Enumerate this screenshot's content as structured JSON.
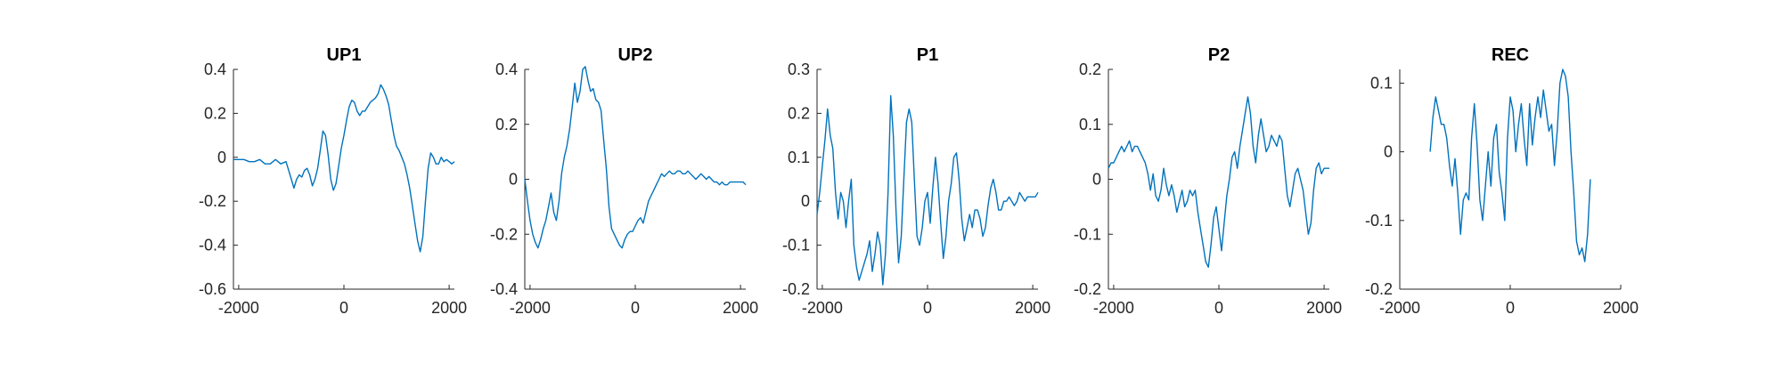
{
  "chart_data": [
    {
      "type": "line",
      "title": "UP1",
      "xlim": [
        -2100,
        2100
      ],
      "ylim": [
        -0.6,
        0.4
      ],
      "xticks": [
        -2000,
        0,
        2000
      ],
      "xtick_labels": [
        "-2000",
        "0",
        "2000"
      ],
      "yticks": [
        0.4,
        0.2,
        0,
        -0.2,
        -0.4,
        -0.6
      ],
      "ytick_labels": [
        "0.4",
        "0.2",
        "0",
        "-0.2",
        "-0.4",
        "-0.6"
      ],
      "series": [
        {
          "color": "#0072BD",
          "x": [
            -2100,
            -2000,
            -1900,
            -1800,
            -1700,
            -1600,
            -1500,
            -1400,
            -1300,
            -1200,
            -1100,
            -1050,
            -1000,
            -950,
            -900,
            -850,
            -800,
            -750,
            -700,
            -650,
            -600,
            -550,
            -500,
            -450,
            -400,
            -350,
            -300,
            -250,
            -200,
            -150,
            -100,
            -50,
            0,
            50,
            100,
            150,
            200,
            250,
            300,
            350,
            400,
            450,
            500,
            550,
            600,
            650,
            700,
            750,
            800,
            850,
            900,
            950,
            1000,
            1050,
            1100,
            1150,
            1200,
            1250,
            1300,
            1350,
            1400,
            1450,
            1500,
            1550,
            1600,
            1650,
            1700,
            1750,
            1800,
            1850,
            1900,
            1950,
            2000,
            2050,
            2100
          ],
          "y": [
            -0.01,
            -0.01,
            -0.01,
            -0.02,
            -0.02,
            -0.01,
            -0.03,
            -0.03,
            -0.01,
            -0.03,
            -0.02,
            -0.06,
            -0.1,
            -0.14,
            -0.1,
            -0.08,
            -0.09,
            -0.06,
            -0.05,
            -0.08,
            -0.13,
            -0.1,
            -0.05,
            0.03,
            0.12,
            0.1,
            0.01,
            -0.1,
            -0.15,
            -0.12,
            -0.04,
            0.04,
            0.1,
            0.17,
            0.23,
            0.26,
            0.25,
            0.21,
            0.19,
            0.21,
            0.21,
            0.23,
            0.25,
            0.26,
            0.27,
            0.29,
            0.33,
            0.31,
            0.28,
            0.24,
            0.17,
            0.1,
            0.05,
            0.03,
            0.0,
            -0.03,
            -0.08,
            -0.14,
            -0.22,
            -0.3,
            -0.38,
            -0.43,
            -0.36,
            -0.2,
            -0.05,
            0.02,
            0.0,
            -0.03,
            -0.03,
            0.0,
            -0.02,
            -0.01,
            -0.02,
            -0.03,
            -0.02
          ]
        }
      ]
    },
    {
      "type": "line",
      "title": "UP2",
      "xlim": [
        -2100,
        2100
      ],
      "ylim": [
        -0.4,
        0.4
      ],
      "xticks": [
        -2000,
        0,
        2000
      ],
      "xtick_labels": [
        "-2000",
        "0",
        "2000"
      ],
      "yticks": [
        0.4,
        0.2,
        0,
        -0.2,
        -0.4
      ],
      "ytick_labels": [
        "0.4",
        "0.2",
        "0",
        "-0.2",
        "-0.4"
      ],
      "series": [
        {
          "color": "#0072BD",
          "x": [
            -2100,
            -2050,
            -2000,
            -1950,
            -1900,
            -1850,
            -1800,
            -1750,
            -1700,
            -1650,
            -1600,
            -1550,
            -1500,
            -1450,
            -1400,
            -1350,
            -1300,
            -1250,
            -1200,
            -1150,
            -1100,
            -1050,
            -1000,
            -950,
            -900,
            -850,
            -800,
            -750,
            -700,
            -650,
            -600,
            -550,
            -500,
            -450,
            -400,
            -350,
            -300,
            -250,
            -200,
            -150,
            -100,
            -50,
            0,
            50,
            100,
            150,
            200,
            250,
            300,
            350,
            400,
            450,
            500,
            550,
            600,
            650,
            700,
            750,
            800,
            850,
            900,
            950,
            1000,
            1050,
            1100,
            1150,
            1200,
            1250,
            1300,
            1350,
            1400,
            1450,
            1500,
            1550,
            1600,
            1650,
            1700,
            1750,
            1800,
            1850,
            1900,
            1950,
            2000,
            2050,
            2100
          ],
          "y": [
            0.0,
            -0.08,
            -0.15,
            -0.2,
            -0.23,
            -0.25,
            -0.22,
            -0.18,
            -0.15,
            -0.1,
            -0.05,
            -0.12,
            -0.15,
            -0.08,
            0.02,
            0.08,
            0.12,
            0.18,
            0.26,
            0.35,
            0.28,
            0.32,
            0.4,
            0.41,
            0.36,
            0.32,
            0.33,
            0.29,
            0.28,
            0.25,
            0.14,
            0.04,
            -0.1,
            -0.18,
            -0.2,
            -0.22,
            -0.24,
            -0.25,
            -0.22,
            -0.2,
            -0.19,
            -0.19,
            -0.17,
            -0.15,
            -0.14,
            -0.16,
            -0.12,
            -0.08,
            -0.06,
            -0.04,
            -0.02,
            0.0,
            0.02,
            0.01,
            0.02,
            0.03,
            0.02,
            0.02,
            0.03,
            0.03,
            0.02,
            0.02,
            0.03,
            0.02,
            0.01,
            0.0,
            0.01,
            0.02,
            0.01,
            0.0,
            0.01,
            0.0,
            -0.01,
            -0.01,
            -0.02,
            -0.01,
            -0.02,
            -0.02,
            -0.01,
            -0.01,
            -0.01,
            -0.01,
            -0.01,
            -0.01,
            -0.02
          ]
        }
      ]
    },
    {
      "type": "line",
      "title": "P1",
      "xlim": [
        -2100,
        2100
      ],
      "ylim": [
        -0.2,
        0.3
      ],
      "xticks": [
        -2000,
        0,
        2000
      ],
      "xtick_labels": [
        "-2000",
        "0",
        "2000"
      ],
      "yticks": [
        0.3,
        0.2,
        0.1,
        0,
        -0.1,
        -0.2
      ],
      "ytick_labels": [
        "0.3",
        "0.2",
        "0.1",
        "0",
        "-0.1",
        "-0.2"
      ],
      "series": [
        {
          "color": "#0072BD",
          "x": [
            -2100,
            -2050,
            -2000,
            -1950,
            -1900,
            -1850,
            -1800,
            -1750,
            -1700,
            -1650,
            -1600,
            -1550,
            -1500,
            -1450,
            -1400,
            -1350,
            -1300,
            -1250,
            -1200,
            -1150,
            -1100,
            -1050,
            -1000,
            -950,
            -900,
            -850,
            -800,
            -750,
            -700,
            -650,
            -600,
            -550,
            -500,
            -450,
            -400,
            -350,
            -300,
            -250,
            -200,
            -150,
            -100,
            -50,
            0,
            50,
            100,
            150,
            200,
            250,
            300,
            350,
            400,
            450,
            500,
            550,
            600,
            650,
            700,
            750,
            800,
            850,
            900,
            950,
            1000,
            1050,
            1100,
            1150,
            1200,
            1250,
            1300,
            1350,
            1400,
            1450,
            1500,
            1550,
            1600,
            1650,
            1700,
            1750,
            1800,
            1850,
            1900,
            1950,
            2000,
            2050,
            2100
          ],
          "y": [
            -0.03,
            0.02,
            0.08,
            0.14,
            0.21,
            0.15,
            0.12,
            0.02,
            -0.04,
            0.02,
            0.0,
            -0.06,
            0.0,
            0.05,
            -0.1,
            -0.15,
            -0.18,
            -0.16,
            -0.14,
            -0.12,
            -0.09,
            -0.16,
            -0.12,
            -0.07,
            -0.1,
            -0.19,
            -0.12,
            0.02,
            0.24,
            0.15,
            -0.02,
            -0.14,
            -0.08,
            0.05,
            0.18,
            0.21,
            0.18,
            0.05,
            -0.08,
            -0.1,
            -0.06,
            0.0,
            0.02,
            -0.05,
            0.03,
            0.1,
            0.04,
            -0.05,
            -0.13,
            -0.08,
            0.0,
            0.04,
            0.1,
            0.11,
            0.05,
            -0.04,
            -0.09,
            -0.06,
            -0.03,
            -0.06,
            -0.02,
            -0.02,
            -0.04,
            -0.08,
            -0.06,
            -0.01,
            0.03,
            0.05,
            0.02,
            -0.02,
            -0.02,
            0.0,
            0.0,
            0.01,
            0.0,
            -0.01,
            0.0,
            0.02,
            0.01,
            0.0,
            0.01,
            0.01,
            0.01,
            0.01,
            0.02
          ]
        }
      ]
    },
    {
      "type": "line",
      "title": "P2",
      "xlim": [
        -2100,
        2100
      ],
      "ylim": [
        -0.2,
        0.2
      ],
      "xticks": [
        -2000,
        0,
        2000
      ],
      "xtick_labels": [
        "-2000",
        "0",
        "2000"
      ],
      "yticks": [
        0.2,
        0.1,
        0,
        -0.1,
        -0.2
      ],
      "ytick_labels": [
        "0.2",
        "0.1",
        "0",
        "-0.1",
        "-0.2"
      ],
      "series": [
        {
          "color": "#0072BD",
          "x": [
            -2100,
            -2050,
            -2000,
            -1950,
            -1900,
            -1850,
            -1800,
            -1750,
            -1700,
            -1650,
            -1600,
            -1550,
            -1500,
            -1450,
            -1400,
            -1350,
            -1300,
            -1250,
            -1200,
            -1150,
            -1100,
            -1050,
            -1000,
            -950,
            -900,
            -850,
            -800,
            -750,
            -700,
            -650,
            -600,
            -550,
            -500,
            -450,
            -400,
            -350,
            -300,
            -250,
            -200,
            -150,
            -100,
            -50,
            0,
            50,
            100,
            150,
            200,
            250,
            300,
            350,
            400,
            450,
            500,
            550,
            600,
            650,
            700,
            750,
            800,
            850,
            900,
            950,
            1000,
            1050,
            1100,
            1150,
            1200,
            1250,
            1300,
            1350,
            1400,
            1450,
            1500,
            1550,
            1600,
            1650,
            1700,
            1750,
            1800,
            1850,
            1900,
            1950,
            2000,
            2050,
            2100
          ],
          "y": [
            0.02,
            0.03,
            0.03,
            0.04,
            0.05,
            0.06,
            0.05,
            0.06,
            0.07,
            0.05,
            0.06,
            0.06,
            0.05,
            0.04,
            0.03,
            0.01,
            -0.02,
            0.01,
            -0.03,
            -0.04,
            -0.02,
            0.02,
            -0.01,
            -0.03,
            -0.01,
            -0.03,
            -0.06,
            -0.04,
            -0.02,
            -0.05,
            -0.04,
            -0.02,
            -0.03,
            -0.02,
            -0.06,
            -0.09,
            -0.12,
            -0.15,
            -0.16,
            -0.12,
            -0.07,
            -0.05,
            -0.09,
            -0.13,
            -0.08,
            -0.03,
            0.0,
            0.04,
            0.05,
            0.02,
            0.06,
            0.09,
            0.12,
            0.15,
            0.12,
            0.06,
            0.03,
            0.08,
            0.11,
            0.08,
            0.05,
            0.06,
            0.08,
            0.07,
            0.06,
            0.08,
            0.07,
            0.02,
            -0.03,
            -0.05,
            -0.02,
            0.01,
            0.02,
            0.0,
            -0.02,
            -0.06,
            -0.1,
            -0.08,
            -0.02,
            0.02,
            0.03,
            0.01,
            0.02,
            0.02,
            0.02
          ]
        }
      ]
    },
    {
      "type": "line",
      "title": "REC",
      "xlim": [
        -2000,
        2000
      ],
      "ylim": [
        -0.2,
        0.12
      ],
      "xticks": [
        -2000,
        0,
        2000
      ],
      "xtick_labels": [
        "-2000",
        "0",
        "2000"
      ],
      "yticks": [
        0.1,
        0,
        -0.1,
        -0.2
      ],
      "ytick_labels": [
        "0.1",
        "0",
        "-0.1",
        "-0.2"
      ],
      "series": [
        {
          "color": "#0072BD",
          "x": [
            -1450,
            -1400,
            -1350,
            -1300,
            -1250,
            -1200,
            -1150,
            -1100,
            -1050,
            -1000,
            -950,
            -900,
            -850,
            -800,
            -750,
            -700,
            -650,
            -600,
            -550,
            -500,
            -450,
            -400,
            -350,
            -300,
            -250,
            -200,
            -150,
            -100,
            -50,
            0,
            50,
            100,
            150,
            200,
            250,
            300,
            350,
            400,
            450,
            500,
            550,
            600,
            650,
            700,
            750,
            800,
            850,
            900,
            950,
            1000,
            1050,
            1100,
            1150,
            1200,
            1250,
            1300,
            1350,
            1400,
            1450
          ],
          "y": [
            0.0,
            0.05,
            0.08,
            0.06,
            0.04,
            0.04,
            0.02,
            -0.02,
            -0.05,
            -0.01,
            -0.06,
            -0.12,
            -0.07,
            -0.06,
            -0.07,
            0.02,
            0.07,
            0.01,
            -0.07,
            -0.1,
            -0.05,
            0.0,
            -0.05,
            0.02,
            0.04,
            -0.03,
            -0.06,
            -0.1,
            0.02,
            0.08,
            0.06,
            0.0,
            0.04,
            0.07,
            0.02,
            -0.02,
            0.07,
            0.01,
            0.05,
            0.08,
            0.05,
            0.09,
            0.06,
            0.03,
            0.04,
            -0.02,
            0.03,
            0.1,
            0.12,
            0.11,
            0.08,
            0.0,
            -0.06,
            -0.13,
            -0.15,
            -0.14,
            -0.16,
            -0.12,
            -0.04
          ]
        }
      ]
    }
  ]
}
